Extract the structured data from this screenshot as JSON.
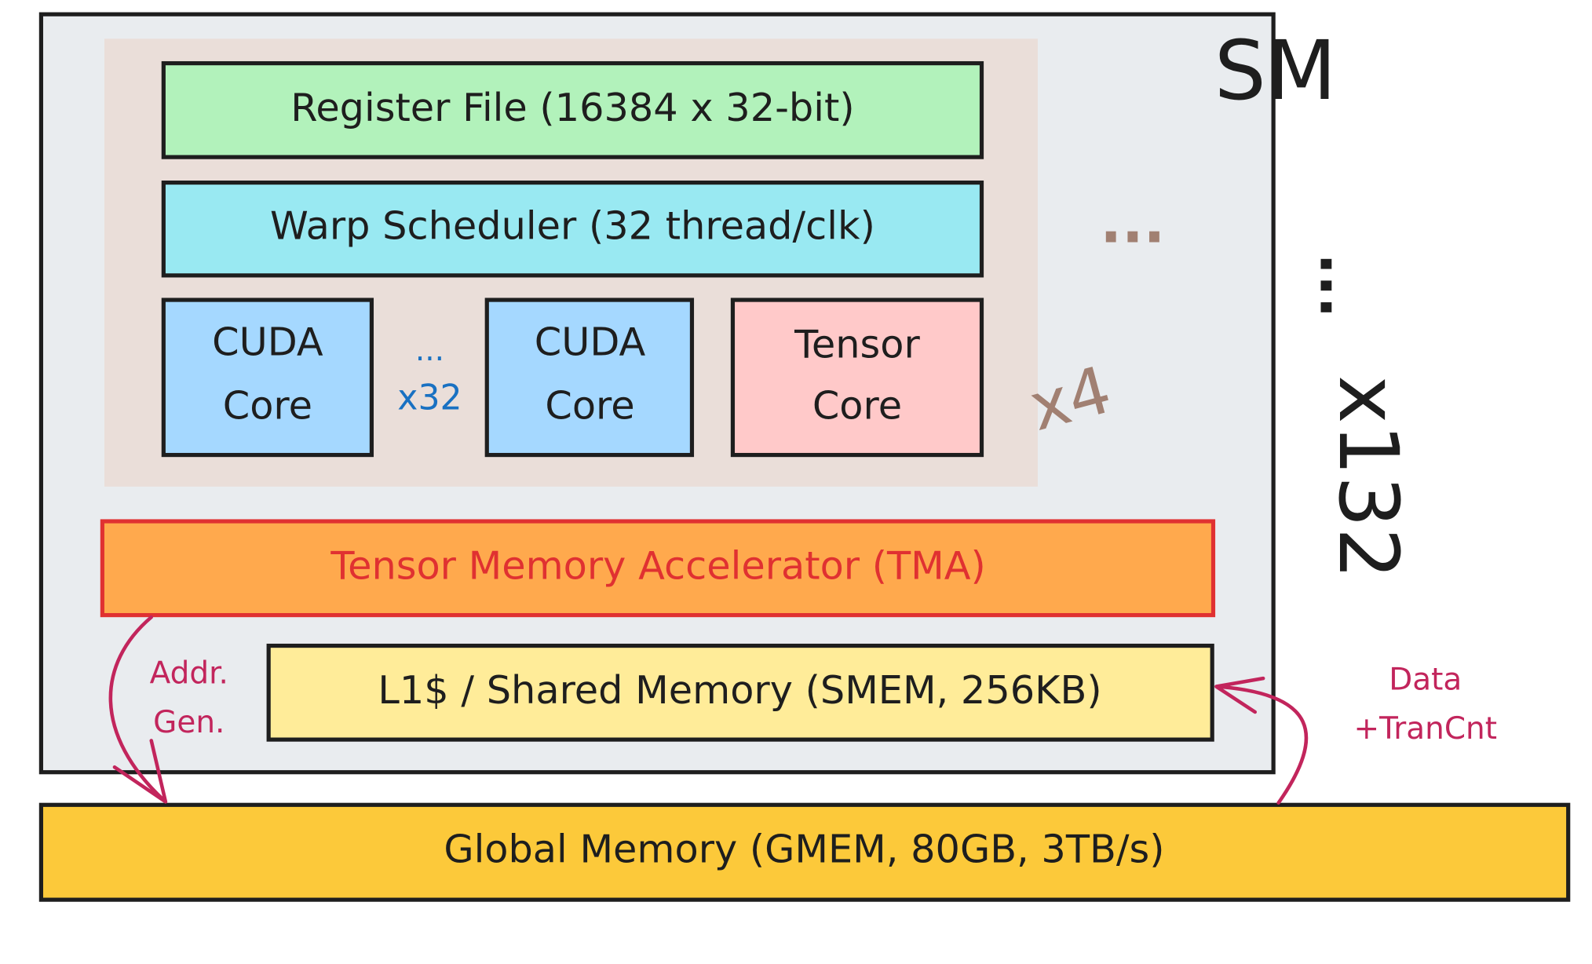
{
  "sm": {
    "label": "SM",
    "ellipsis": "...",
    "count": "x132"
  },
  "sub_partition": {
    "ellipsis": "...",
    "count": "x4"
  },
  "register_file": "Register File (16384 x 32-bit)",
  "warp_scheduler": "Warp Scheduler (32 thread/clk)",
  "cuda_core_1": [
    "CUDA",
    "Core"
  ],
  "cuda_core_separator": [
    "...",
    "x32"
  ],
  "cuda_core_2": [
    "CUDA",
    "Core"
  ],
  "tensor_core": [
    "Tensor",
    "Core"
  ],
  "tma": "Tensor Memory Accelerator (TMA)",
  "smem": "L1$ / Shared Memory (SMEM, 256KB)",
  "gmem": "Global Memory (GMEM, 80GB, 3TB/s)",
  "addr_gen": [
    "Addr.",
    "Gen."
  ],
  "data_trancnt": [
    "Data",
    "+TranCnt"
  ]
}
